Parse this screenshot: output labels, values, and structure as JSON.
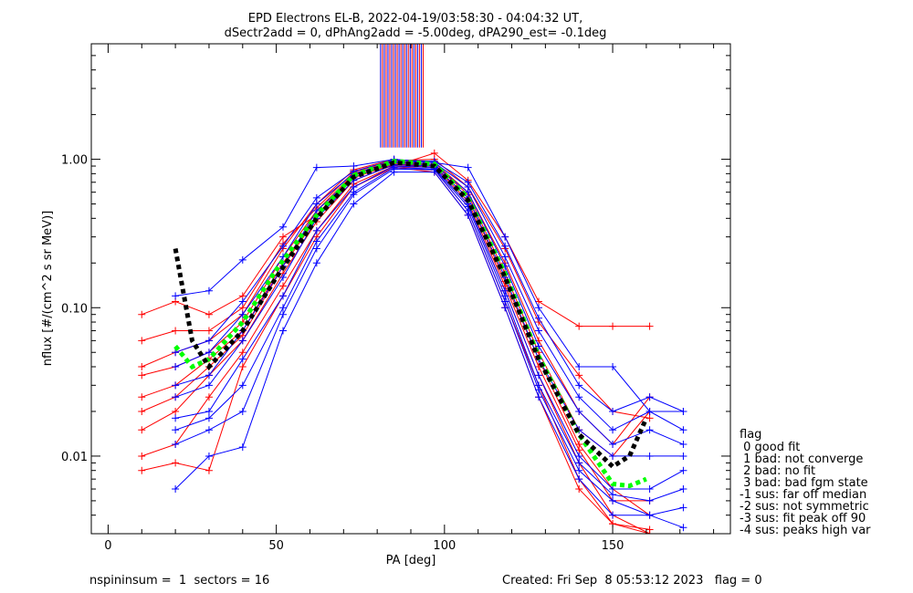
{
  "title_line1": "EPD Electrons EL-B, 2022-04-19/03:58:30 - 04:04:32 UT,",
  "title_line2": "dSectr2add = 0, dPhAng2add = -5.00deg, dPA290_est=  -0.1deg",
  "footer_left": "nspininsum =  1  sectors = 16",
  "footer_right": "Created: Fri Sep  8 05:53:12 2023   flag = 0",
  "legend": {
    "title": "flag",
    "items": [
      " 0 good fit",
      " 1 bad: not converge",
      " 2 bad: no fit",
      " 3 bad: bad fgm state",
      "-1 sus: far off median",
      "-2 sus: not symmetric",
      "-3 sus: fit peak off 90",
      "-4 sus: peaks high var"
    ]
  },
  "chart_data": {
    "type": "line",
    "title": "EPD Electrons EL-B, 2022-04-19/03:58:30 - 04:04:32 UT,",
    "subtitle": "dSectr2add = 0, dPhAng2add = -5.00deg, dPA290_est=  -0.1deg",
    "xlabel": "PA [deg]",
    "ylabel": "nflux [#/(cm^2 s sr MeV)]",
    "xlim": [
      -5,
      185
    ],
    "ylim": [
      0.003,
      6
    ],
    "yscale": "log",
    "xticks": [
      "0",
      "50",
      "100",
      "150"
    ],
    "yticks": [
      "0.01",
      "0.10",
      "1.00"
    ],
    "colors": {
      "red": "#ff0000",
      "blue": "#0000ff",
      "green": "#00ff00",
      "black": "#000000"
    },
    "series": [
      {
        "color": "#ff0000",
        "x": [
          10,
          20,
          30,
          40,
          52,
          62,
          73,
          85,
          97,
          107,
          118,
          128,
          140,
          150,
          161
        ],
        "y": [
          0.09,
          0.11,
          0.09,
          0.12,
          0.3,
          0.42,
          0.8,
          0.9,
          1.1,
          0.72,
          0.3,
          0.11,
          0.075,
          0.075,
          0.075
        ]
      },
      {
        "color": "#ff0000",
        "x": [
          10,
          20,
          30,
          40,
          52,
          62,
          73,
          85,
          97,
          107,
          118,
          128,
          140,
          150,
          161
        ],
        "y": [
          0.04,
          0.05,
          0.06,
          0.09,
          0.25,
          0.5,
          0.85,
          1.0,
          0.95,
          0.6,
          0.2,
          0.06,
          0.02,
          0.012,
          0.025
        ]
      },
      {
        "color": "#ff0000",
        "x": [
          10,
          20,
          30,
          40,
          52,
          62,
          73,
          85,
          97,
          107,
          118,
          128,
          140,
          150,
          161
        ],
        "y": [
          0.025,
          0.03,
          0.045,
          0.07,
          0.2,
          0.42,
          0.78,
          0.95,
          0.9,
          0.55,
          0.15,
          0.045,
          0.012,
          0.006,
          0.004
        ]
      },
      {
        "color": "#ff0000",
        "x": [
          10,
          20,
          30,
          40,
          52,
          62,
          73,
          85,
          97,
          107,
          118,
          128,
          140,
          150,
          161
        ],
        "y": [
          0.015,
          0.02,
          0.035,
          0.06,
          0.17,
          0.38,
          0.72,
          0.92,
          0.88,
          0.5,
          0.13,
          0.035,
          0.009,
          0.004,
          0.003
        ]
      },
      {
        "color": "#ff0000",
        "x": [
          10,
          20,
          30,
          40,
          52,
          62,
          73,
          85,
          97,
          107,
          118,
          128,
          140,
          150,
          161
        ],
        "y": [
          0.01,
          0.012,
          0.025,
          0.05,
          0.14,
          0.33,
          0.68,
          0.9,
          0.85,
          0.45,
          0.11,
          0.03,
          0.007,
          0.0035,
          0.0032
        ]
      },
      {
        "color": "#ff0000",
        "x": [
          10,
          20,
          30,
          40,
          52,
          62,
          73,
          85,
          97,
          107,
          118,
          128,
          140,
          150,
          161
        ],
        "y": [
          0.008,
          0.009,
          0.008,
          0.04,
          0.12,
          0.3,
          0.65,
          0.88,
          0.82,
          0.42,
          0.1,
          0.025,
          0.006,
          0.0035,
          0.003
        ]
      },
      {
        "color": "#ff0000",
        "x": [
          10,
          20,
          30,
          40,
          52,
          62,
          73,
          85,
          97,
          107,
          118,
          128,
          140,
          150,
          161
        ],
        "y": [
          0.035,
          0.04,
          0.05,
          0.08,
          0.22,
          0.45,
          0.8,
          0.97,
          0.92,
          0.58,
          0.17,
          0.05,
          0.015,
          0.01,
          0.02
        ]
      },
      {
        "color": "#ff0000",
        "x": [
          10,
          20,
          30,
          40,
          52,
          62,
          73,
          85,
          97,
          107,
          118,
          128,
          140,
          150,
          161
        ],
        "y": [
          0.02,
          0.025,
          0.04,
          0.065,
          0.19,
          0.4,
          0.75,
          0.93,
          0.9,
          0.52,
          0.14,
          0.04,
          0.011,
          0.005,
          0.005
        ]
      },
      {
        "color": "#ff0000",
        "x": [
          10,
          20,
          30,
          40,
          52,
          62,
          73,
          85,
          97,
          107,
          118,
          128,
          140,
          150,
          161
        ],
        "y": [
          0.06,
          0.07,
          0.07,
          0.1,
          0.27,
          0.47,
          0.82,
          0.98,
          1.0,
          0.65,
          0.25,
          0.08,
          0.035,
          0.02,
          0.018
        ]
      },
      {
        "color": "#0000ff",
        "x": [
          20,
          30,
          40,
          52,
          62,
          73,
          85,
          97,
          107,
          118,
          128,
          140,
          150,
          161,
          171
        ],
        "y": [
          0.12,
          0.13,
          0.21,
          0.35,
          0.88,
          0.9,
          1.0,
          0.95,
          0.88,
          0.3,
          0.1,
          0.04,
          0.04,
          0.02,
          0.02
        ]
      },
      {
        "color": "#0000ff",
        "x": [
          20,
          30,
          40,
          52,
          62,
          73,
          85,
          97,
          107,
          118,
          128,
          140,
          150,
          161,
          171
        ],
        "y": [
          0.04,
          0.05,
          0.09,
          0.22,
          0.5,
          0.8,
          0.97,
          0.95,
          0.65,
          0.22,
          0.07,
          0.025,
          0.015,
          0.02,
          0.015
        ]
      },
      {
        "color": "#0000ff",
        "x": [
          20,
          30,
          40,
          52,
          62,
          73,
          85,
          97,
          107,
          118,
          128,
          140,
          150,
          161,
          171
        ],
        "y": [
          0.025,
          0.03,
          0.06,
          0.16,
          0.4,
          0.72,
          0.92,
          0.9,
          0.55,
          0.16,
          0.045,
          0.015,
          0.01,
          0.01,
          0.01
        ]
      },
      {
        "color": "#0000ff",
        "x": [
          20,
          30,
          40,
          52,
          62,
          73,
          85,
          97,
          107,
          118,
          128,
          140,
          150,
          161,
          171
        ],
        "y": [
          0.018,
          0.02,
          0.045,
          0.12,
          0.33,
          0.65,
          0.9,
          0.88,
          0.5,
          0.13,
          0.035,
          0.01,
          0.006,
          0.006,
          0.008
        ]
      },
      {
        "color": "#0000ff",
        "x": [
          20,
          30,
          40,
          52,
          62,
          73,
          85,
          97,
          107,
          118,
          128,
          140,
          150,
          161,
          171
        ],
        "y": [
          0.012,
          0.015,
          0.02,
          0.09,
          0.25,
          0.58,
          0.86,
          0.85,
          0.45,
          0.11,
          0.028,
          0.008,
          0.005,
          0.004,
          0.0045
        ]
      },
      {
        "color": "#0000ff",
        "x": [
          20,
          30,
          40,
          52,
          62,
          73,
          85,
          97,
          107,
          118,
          128,
          140,
          150,
          161,
          171
        ],
        "y": [
          0.006,
          0.01,
          0.0115,
          0.07,
          0.2,
          0.5,
          0.82,
          0.82,
          0.42,
          0.1,
          0.025,
          0.007,
          0.004,
          0.004,
          0.0033
        ]
      },
      {
        "color": "#0000ff",
        "x": [
          20,
          30,
          40,
          52,
          62,
          73,
          85,
          97,
          107,
          118,
          128,
          140,
          150,
          161,
          171
        ],
        "y": [
          0.03,
          0.035,
          0.07,
          0.19,
          0.45,
          0.76,
          0.95,
          0.92,
          0.6,
          0.19,
          0.055,
          0.02,
          0.012,
          0.015,
          0.012
        ]
      },
      {
        "color": "#0000ff",
        "x": [
          20,
          30,
          40,
          52,
          62,
          73,
          85,
          97,
          107,
          118,
          128,
          140,
          150,
          161,
          171
        ],
        "y": [
          0.05,
          0.06,
          0.11,
          0.26,
          0.55,
          0.83,
          0.99,
          0.97,
          0.7,
          0.26,
          0.085,
          0.03,
          0.02,
          0.025,
          0.02
        ]
      },
      {
        "color": "#0000ff",
        "x": [
          20,
          30,
          40,
          52,
          62,
          73,
          85,
          97,
          107,
          118,
          128,
          140,
          150,
          161,
          171
        ],
        "y": [
          0.015,
          0.018,
          0.03,
          0.1,
          0.28,
          0.6,
          0.88,
          0.86,
          0.48,
          0.12,
          0.03,
          0.009,
          0.0055,
          0.005,
          0.006
        ]
      },
      {
        "color": "#00ff00",
        "style": "dashed",
        "x": [
          20,
          25,
          30,
          40,
          50,
          62,
          73,
          85,
          97,
          107,
          118,
          128,
          140,
          150,
          155,
          160
        ],
        "y": [
          0.055,
          0.04,
          0.045,
          0.08,
          0.18,
          0.42,
          0.78,
          0.97,
          0.93,
          0.55,
          0.17,
          0.047,
          0.014,
          0.0065,
          0.0063,
          0.007
        ]
      },
      {
        "color": "#000000",
        "style": "dashed",
        "x": [
          20,
          25,
          30,
          40,
          50,
          62,
          73,
          85,
          97,
          107,
          118,
          128,
          140,
          150,
          155,
          160
        ],
        "y": [
          0.25,
          0.06,
          0.04,
          0.07,
          0.16,
          0.4,
          0.76,
          0.95,
          0.9,
          0.53,
          0.16,
          0.045,
          0.014,
          0.0085,
          0.01,
          0.018
        ]
      }
    ]
  }
}
